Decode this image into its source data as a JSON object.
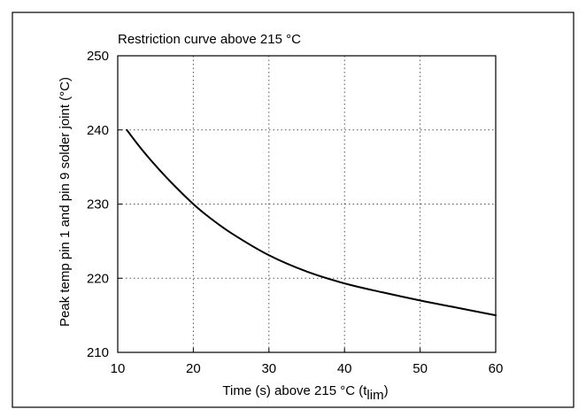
{
  "chart_data": {
    "type": "line",
    "title": "Restriction curve above 215 °C",
    "xlabel_main": "Time (s) above 215 °C (t",
    "xlabel_sub": "lim",
    "xlabel_close": ")",
    "ylabel": "Peak temp pin 1 and pin 9 solder joint  (°C)",
    "xlim": [
      10,
      60
    ],
    "ylim": [
      210,
      250
    ],
    "x_ticks": [
      10,
      20,
      30,
      40,
      50,
      60
    ],
    "y_ticks": [
      210,
      220,
      230,
      240,
      250
    ],
    "x_tick_labels": [
      "10",
      "20",
      "30",
      "40",
      "50",
      "60"
    ],
    "y_tick_labels": [
      "210",
      "220",
      "230",
      "240",
      "250"
    ],
    "grid": true,
    "grid_style": "dotted",
    "legend": "none",
    "series": [
      {
        "x": [
          11.2,
          13,
          15,
          17,
          20,
          22,
          25,
          30,
          35,
          40,
          45,
          50,
          55,
          60
        ],
        "y": [
          240,
          237.6,
          235.2,
          233.0,
          230.0,
          228.3,
          226.1,
          223.1,
          220.9,
          219.3,
          218.1,
          217.0,
          216.0,
          215.0
        ],
        "color": "#000000"
      }
    ]
  },
  "colors": {
    "border": "#000000",
    "grid": "#555555",
    "curve": "#000000",
    "background": "#ffffff"
  }
}
